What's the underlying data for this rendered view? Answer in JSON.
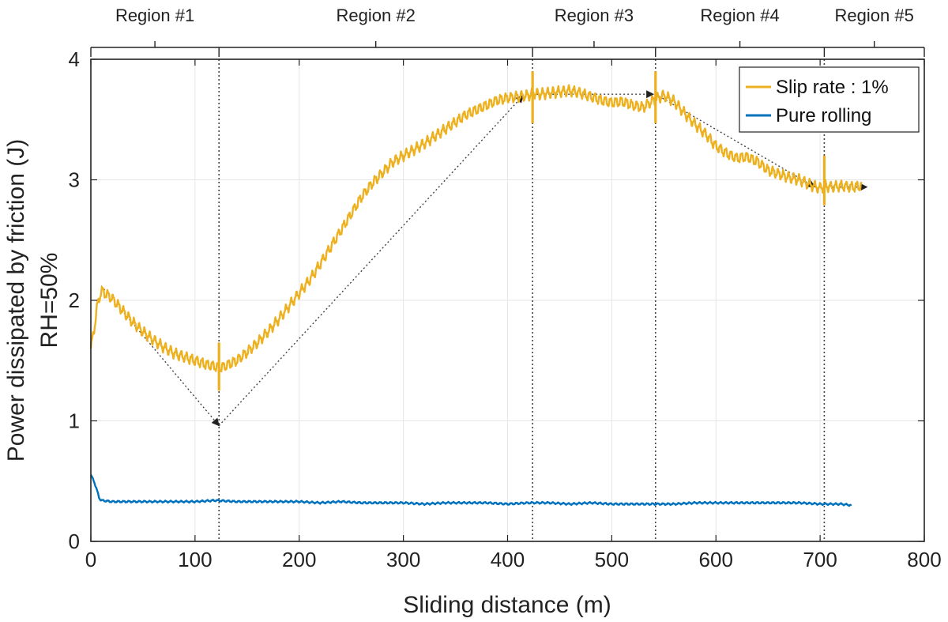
{
  "chart_data": {
    "type": "line",
    "title": "",
    "xlabel": "Sliding distance (m)",
    "ylabel": "Power dissipated by friction (J)",
    "ylabel2": "RH=50%",
    "xlim": [
      0,
      800
    ],
    "ylim": [
      0,
      4
    ],
    "xticks": [
      0,
      100,
      200,
      300,
      400,
      500,
      600,
      700,
      800
    ],
    "yticks": [
      0,
      1,
      2,
      3,
      4
    ],
    "grid": true,
    "legend_position": "top-right",
    "colors": {
      "slip": "#EDB120",
      "rolling": "#0072BD",
      "grid": "#e6e6e6",
      "axis": "#222222",
      "guide": "#444444"
    },
    "series": [
      {
        "name": "Slip rate : 1%",
        "x": [
          0,
          3,
          6,
          10,
          20,
          30,
          40,
          50,
          60,
          70,
          80,
          90,
          100,
          110,
          120,
          125,
          130,
          140,
          150,
          160,
          170,
          180,
          190,
          200,
          210,
          220,
          230,
          240,
          250,
          260,
          270,
          280,
          290,
          300,
          310,
          320,
          330,
          340,
          350,
          360,
          370,
          380,
          390,
          400,
          410,
          420,
          425,
          430,
          440,
          450,
          460,
          470,
          480,
          490,
          500,
          510,
          520,
          530,
          540,
          545,
          550,
          560,
          570,
          580,
          590,
          600,
          610,
          620,
          630,
          640,
          650,
          660,
          670,
          680,
          690,
          700,
          705,
          710,
          720,
          730,
          740
        ],
        "y": [
          1.6,
          1.75,
          1.95,
          2.08,
          2.02,
          1.92,
          1.82,
          1.74,
          1.67,
          1.61,
          1.56,
          1.53,
          1.5,
          1.47,
          1.45,
          1.44,
          1.46,
          1.5,
          1.57,
          1.65,
          1.74,
          1.84,
          1.95,
          2.06,
          2.17,
          2.3,
          2.44,
          2.58,
          2.72,
          2.86,
          2.97,
          3.06,
          3.15,
          3.2,
          3.25,
          3.3,
          3.36,
          3.42,
          3.48,
          3.54,
          3.58,
          3.62,
          3.66,
          3.68,
          3.69,
          3.7,
          3.72,
          3.71,
          3.72,
          3.73,
          3.74,
          3.72,
          3.69,
          3.66,
          3.64,
          3.65,
          3.62,
          3.6,
          3.66,
          3.68,
          3.7,
          3.65,
          3.55,
          3.46,
          3.38,
          3.28,
          3.22,
          3.18,
          3.19,
          3.15,
          3.08,
          3.05,
          3.02,
          3.0,
          2.96,
          2.93,
          2.95,
          2.94,
          2.95,
          2.94,
          2.95
        ],
        "ripple": 0.035
      },
      {
        "name": "Pure rolling",
        "x": [
          0,
          3,
          6,
          8,
          10,
          20,
          40,
          60,
          80,
          100,
          120,
          140,
          160,
          180,
          200,
          220,
          240,
          260,
          280,
          300,
          320,
          340,
          360,
          380,
          400,
          420,
          440,
          460,
          480,
          500,
          520,
          540,
          560,
          580,
          600,
          620,
          640,
          660,
          680,
          700,
          710,
          720,
          730
        ],
        "y": [
          0.55,
          0.5,
          0.42,
          0.36,
          0.34,
          0.33,
          0.33,
          0.33,
          0.33,
          0.33,
          0.34,
          0.33,
          0.33,
          0.33,
          0.33,
          0.32,
          0.33,
          0.32,
          0.32,
          0.32,
          0.31,
          0.32,
          0.32,
          0.32,
          0.31,
          0.32,
          0.32,
          0.31,
          0.32,
          0.31,
          0.31,
          0.31,
          0.31,
          0.32,
          0.32,
          0.32,
          0.32,
          0.32,
          0.32,
          0.31,
          0.31,
          0.31,
          0.3
        ],
        "ripple": 0.006
      }
    ],
    "region_boundaries": [
      0,
      123,
      424,
      542,
      704,
      800
    ],
    "regions": [
      "Region #1",
      "Region #2",
      "Region #3",
      "Region #4",
      "Region #5"
    ],
    "transition_markers": [
      {
        "x": 123,
        "y_min": 1.25,
        "y_max": 1.65
      },
      {
        "x": 424,
        "y_min": 3.47,
        "y_max": 3.9
      },
      {
        "x": 542,
        "y_min": 3.47,
        "y_max": 3.9
      },
      {
        "x": 704,
        "y_min": 2.79,
        "y_max": 3.2
      }
    ],
    "trend_arrows": [
      {
        "from": [
          10,
          2.12
        ],
        "to": [
          123,
          0.96
        ]
      },
      {
        "from": [
          123,
          0.96
        ],
        "to": [
          415,
          3.7
        ]
      },
      {
        "from": [
          424,
          3.71
        ],
        "to": [
          540,
          3.71
        ]
      },
      {
        "from": [
          542,
          3.71
        ],
        "to": [
          695,
          2.94
        ]
      },
      {
        "from": [
          704,
          2.94
        ],
        "to": [
          745,
          2.94
        ]
      }
    ]
  }
}
